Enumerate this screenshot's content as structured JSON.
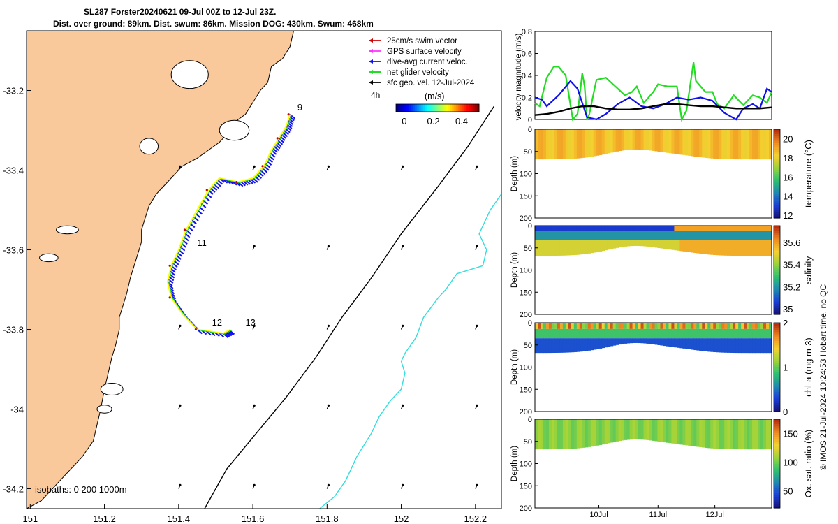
{
  "header": {
    "line1": "SL287 Forster20240621 09-Jul 00Z to 12-Jul 23Z.",
    "line2": "Dist. over ground: 89km. Dist. swum: 86km. Mission DOG: 430km. Swum: 468km"
  },
  "colors": {
    "land": "#f9c89b",
    "glider_track": "#ffff00",
    "net_velocity": "#22dd22",
    "current": "#1010ee",
    "swim": "#cc0000",
    "gps": "#ff33ff",
    "geo": "#000000",
    "isobath_200": "#000000",
    "isobath_1000": "#33dddd"
  },
  "credit": "© IMOS 21-Jul-2024 10:24:53 Hobart time. no QC",
  "chart_data": [
    {
      "id": "map",
      "type": "map",
      "xlim": [
        150.99,
        152.27
      ],
      "ylim": [
        -34.25,
        -33.05
      ],
      "x_ticks": [
        151,
        151.2,
        151.4,
        151.6,
        151.8,
        152,
        152.2
      ],
      "x_tick_labels": [
        "151",
        "151.2",
        "151.4",
        "151.6",
        "151.8",
        "152",
        "152.2"
      ],
      "y_ticks": [
        -33.2,
        -33.4,
        -33.6,
        -33.8,
        -34,
        -34.2
      ],
      "y_tick_labels": [
        "-33.2",
        "-33.4",
        "-33.6",
        "-33.8",
        "-34",
        "-34.2"
      ],
      "legend": {
        "position": "top-right",
        "entries": [
          "25cm/s swim vector",
          "GPS surface velocity",
          "dive-avg current veloc.",
          "net glider velocity",
          "sfc geo. vel. 12-Jul-2024"
        ],
        "time_step": "4h",
        "colorbar_label": "(m/s)",
        "colorbar_ticks": [
          "0",
          "0.2",
          "0.4"
        ]
      },
      "isobaths_label": "isobaths: 0   200  1000m",
      "coast": [
        [
          150.99,
          -33.05
        ],
        [
          151.71,
          -33.05
        ],
        [
          151.7,
          -33.09
        ],
        [
          151.68,
          -33.12
        ],
        [
          151.65,
          -33.14
        ],
        [
          151.64,
          -33.18
        ],
        [
          151.62,
          -33.2
        ],
        [
          151.6,
          -33.23
        ],
        [
          151.58,
          -33.26
        ],
        [
          151.55,
          -33.28
        ],
        [
          151.53,
          -33.31
        ],
        [
          151.51,
          -33.33
        ],
        [
          151.48,
          -33.35
        ],
        [
          151.45,
          -33.37
        ],
        [
          151.41,
          -33.39
        ],
        [
          151.37,
          -33.43
        ],
        [
          151.34,
          -33.46
        ],
        [
          151.32,
          -33.49
        ],
        [
          151.31,
          -33.52
        ],
        [
          151.3,
          -33.55
        ],
        [
          151.3,
          -33.58
        ],
        [
          151.29,
          -33.61
        ],
        [
          151.28,
          -33.64
        ],
        [
          151.27,
          -33.67
        ],
        [
          151.26,
          -33.71
        ],
        [
          151.25,
          -33.74
        ],
        [
          151.24,
          -33.77
        ],
        [
          151.24,
          -33.8
        ],
        [
          151.23,
          -33.84
        ],
        [
          151.22,
          -33.87
        ],
        [
          151.21,
          -33.91
        ],
        [
          151.2,
          -33.95
        ],
        [
          151.19,
          -34.0
        ],
        [
          151.18,
          -34.04
        ],
        [
          151.17,
          -34.08
        ],
        [
          151.14,
          -34.12
        ],
        [
          151.1,
          -34.16
        ],
        [
          151.06,
          -34.2
        ],
        [
          151.03,
          -34.23
        ],
        [
          150.99,
          -34.25
        ]
      ],
      "isobath_200": [
        [
          152.25,
          -33.24
        ],
        [
          152.18,
          -33.34
        ],
        [
          152.1,
          -33.44
        ],
        [
          152.0,
          -33.56
        ],
        [
          151.92,
          -33.67
        ],
        [
          151.84,
          -33.77
        ],
        [
          151.77,
          -33.87
        ],
        [
          151.69,
          -33.97
        ],
        [
          151.61,
          -34.06
        ],
        [
          151.53,
          -34.15
        ],
        [
          151.47,
          -34.25
        ]
      ],
      "isobath_1000": [
        [
          152.27,
          -33.46
        ],
        [
          152.24,
          -33.5
        ],
        [
          152.21,
          -33.56
        ],
        [
          152.23,
          -33.6
        ],
        [
          152.22,
          -33.64
        ],
        [
          152.15,
          -33.66
        ],
        [
          152.12,
          -33.7
        ],
        [
          152.1,
          -33.72
        ],
        [
          152.06,
          -33.77
        ],
        [
          152.04,
          -33.82
        ],
        [
          152.01,
          -33.86
        ],
        [
          152.0,
          -33.88
        ],
        [
          152.01,
          -33.91
        ],
        [
          152.0,
          -33.95
        ],
        [
          151.97,
          -33.98
        ],
        [
          151.94,
          -34.02
        ],
        [
          151.92,
          -34.06
        ],
        [
          151.88,
          -34.12
        ],
        [
          151.85,
          -34.18
        ],
        [
          151.82,
          -34.22
        ],
        [
          151.78,
          -34.25
        ]
      ],
      "track": [
        [
          151.7,
          -33.26
        ],
        [
          151.69,
          -33.29
        ],
        [
          151.67,
          -33.32
        ],
        [
          151.65,
          -33.35
        ],
        [
          151.63,
          -33.39
        ],
        [
          151.6,
          -33.42
        ],
        [
          151.56,
          -33.43
        ],
        [
          151.51,
          -33.42
        ],
        [
          151.48,
          -33.45
        ],
        [
          151.45,
          -33.5
        ],
        [
          151.42,
          -33.55
        ],
        [
          151.4,
          -33.6
        ],
        [
          151.38,
          -33.64
        ],
        [
          151.37,
          -33.68
        ],
        [
          151.38,
          -33.72
        ],
        [
          151.41,
          -33.76
        ],
        [
          151.45,
          -33.8
        ],
        [
          151.52,
          -33.81
        ],
        [
          151.54,
          -33.8
        ]
      ],
      "track_labels": [
        {
          "text": "9",
          "lon": 151.72,
          "lat": -33.25
        },
        {
          "text": "11",
          "lon": 151.45,
          "lat": -33.59
        },
        {
          "text": "12",
          "lon": 151.49,
          "lat": -33.79
        },
        {
          "text": "13",
          "lon": 151.58,
          "lat": -33.79
        }
      ],
      "geo_grid_lons": [
        151.4,
        151.6,
        151.8,
        152.0,
        152.2
      ],
      "geo_grid_lats": [
        -33.4,
        -33.6,
        -33.8,
        -34.0,
        -34.2
      ],
      "geo_vector": [
        0.004,
        0.009
      ]
    },
    {
      "id": "velocity",
      "type": "line",
      "ylabel": "velocity magnitude (m/s)",
      "ylim": [
        0,
        0.8
      ],
      "y_ticks": [
        "0",
        "0.2",
        "0.4",
        "0.6",
        "0.8"
      ],
      "series": [
        {
          "name": "net glider velocity",
          "color": "#22dd22",
          "x": [
            0,
            0.02,
            0.05,
            0.08,
            0.1,
            0.13,
            0.16,
            0.18,
            0.2,
            0.21,
            0.22,
            0.23,
            0.25,
            0.26,
            0.3,
            0.34,
            0.38,
            0.41,
            0.43,
            0.46,
            0.5,
            0.52,
            0.56,
            0.6,
            0.62,
            0.64,
            0.67,
            0.68,
            0.7,
            0.72,
            0.75,
            0.77,
            0.8,
            0.84,
            0.88,
            0.92,
            0.95,
            0.98,
            1.0
          ],
          "values": [
            0.15,
            0.12,
            0.38,
            0.48,
            0.48,
            0.4,
            0.0,
            0.05,
            0.42,
            0.3,
            0.0,
            0.05,
            0.26,
            0.36,
            0.38,
            0.3,
            0.22,
            0.25,
            0.3,
            0.15,
            0.25,
            0.32,
            0.3,
            0.3,
            0.0,
            0.08,
            0.52,
            0.35,
            0.3,
            0.25,
            0.25,
            0.14,
            0.1,
            0.22,
            0.13,
            0.22,
            0.2,
            0.15,
            0.25
          ]
        },
        {
          "name": "dive-avg current veloc.",
          "color": "#1010ee",
          "x": [
            0,
            0.03,
            0.05,
            0.1,
            0.15,
            0.18,
            0.22,
            0.26,
            0.3,
            0.35,
            0.4,
            0.45,
            0.5,
            0.55,
            0.6,
            0.65,
            0.7,
            0.75,
            0.8,
            0.85,
            0.88,
            0.92,
            0.95,
            0.98,
            1.0
          ],
          "values": [
            0.2,
            0.18,
            0.12,
            0.22,
            0.35,
            0.28,
            0.02,
            0.0,
            0.05,
            0.14,
            0.2,
            0.12,
            0.1,
            0.14,
            0.2,
            0.18,
            0.2,
            0.17,
            0.06,
            0.0,
            0.1,
            0.14,
            0.1,
            0.28,
            0.25
          ]
        },
        {
          "name": "sfc geo. vel.",
          "color": "#000000",
          "x": [
            0,
            0.05,
            0.1,
            0.15,
            0.2,
            0.25,
            0.3,
            0.35,
            0.4,
            0.45,
            0.5,
            0.55,
            0.6,
            0.65,
            0.7,
            0.75,
            0.8,
            0.85,
            0.9,
            0.95,
            1.0
          ],
          "values": [
            0.04,
            0.05,
            0.07,
            0.1,
            0.12,
            0.12,
            0.1,
            0.09,
            0.09,
            0.1,
            0.12,
            0.14,
            0.14,
            0.13,
            0.12,
            0.12,
            0.11,
            0.1,
            0.1,
            0.1,
            0.11
          ]
        }
      ]
    },
    {
      "id": "temperature",
      "type": "heatmap",
      "ylabel": "Depth (m)",
      "cbar_label": "temperature (°C)",
      "cbar_ticks": [
        "12",
        "14",
        "16",
        "18",
        "20"
      ],
      "y_ticks": [
        "0",
        "50",
        "100",
        "150",
        "200"
      ],
      "ylim": [
        0,
        200
      ],
      "vrange": [
        11.7,
        21
      ],
      "colormap": [
        "#14147a",
        "#1a3fd8",
        "#1f8ab0",
        "#2fc070",
        "#9ad43a",
        "#f5d030",
        "#f08c20",
        "#b83010"
      ],
      "bands": [
        {
          "d0": 0,
          "d1": 68,
          "value": 18.7
        }
      ]
    },
    {
      "id": "salinity",
      "type": "heatmap",
      "ylabel": "Depth (m)",
      "cbar_label": "salinity",
      "cbar_ticks": [
        "35",
        "35.2",
        "35.4",
        "35.6"
      ],
      "y_ticks": [
        "0",
        "50",
        "100",
        "150",
        "200"
      ],
      "ylim": [
        0,
        200
      ],
      "vrange": [
        34.95,
        35.75
      ],
      "colormap": [
        "#14147a",
        "#1a3fd8",
        "#1f8ab0",
        "#2fc070",
        "#9ad43a",
        "#f5d030",
        "#f08c20",
        "#b83010"
      ],
      "bands": [
        {
          "d0": 0,
          "d1": 12,
          "value": 35.05
        },
        {
          "d0": 12,
          "d1": 32,
          "value": 35.2
        },
        {
          "d0": 32,
          "d1": 68,
          "value": 35.48
        }
      ]
    },
    {
      "id": "chla",
      "type": "heatmap",
      "ylabel": "Depth (m)",
      "cbar_label": "chl-a (mg m-3)",
      "cbar_ticks": [
        "0",
        "1",
        "2"
      ],
      "y_ticks": [
        "0",
        "50",
        "100",
        "150",
        "200"
      ],
      "ylim": [
        0,
        200
      ],
      "vrange": [
        0,
        2
      ],
      "colormap": [
        "#14147a",
        "#1a3fd8",
        "#1f8ab0",
        "#2fc070",
        "#9ad43a",
        "#f5d030",
        "#f08c20",
        "#b83010"
      ],
      "bands": [
        {
          "d0": 0,
          "d1": 14,
          "value": 1.7
        },
        {
          "d0": 14,
          "d1": 35,
          "value": 0.9
        },
        {
          "d0": 35,
          "d1": 68,
          "value": 0.35
        }
      ]
    },
    {
      "id": "oxygen",
      "type": "heatmap",
      "ylabel": "Depth (m)",
      "cbar_label": "Ox. sat. ratio (%)",
      "cbar_ticks": [
        "50",
        "100",
        "150"
      ],
      "y_ticks": [
        "0",
        "50",
        "100",
        "150",
        "200"
      ],
      "ylim": [
        0,
        200
      ],
      "vrange": [
        20,
        175
      ],
      "colormap": [
        "#14147a",
        "#1a3fd8",
        "#1f8ab0",
        "#2fc070",
        "#9ad43a",
        "#f5d030",
        "#f08c20",
        "#b83010"
      ],
      "bands": [
        {
          "d0": 0,
          "d1": 68,
          "value": 108
        }
      ],
      "x_ticks": [
        "10Jul",
        "11Jul",
        "12Jul"
      ]
    }
  ]
}
